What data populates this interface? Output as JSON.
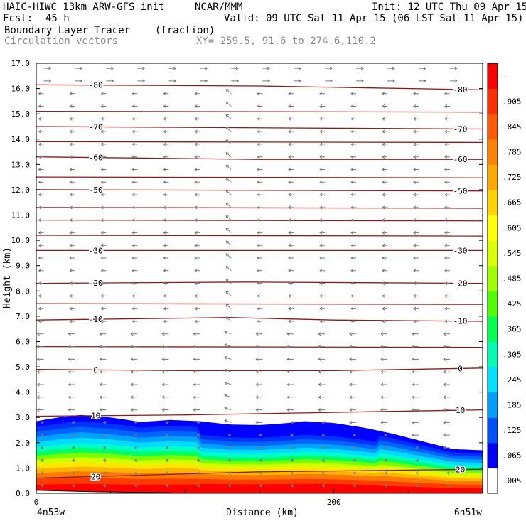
{
  "header": {
    "title_left": "HAIC-HIWC 13km ARW-GFS init",
    "org": "NCAR/MMM",
    "init": "Init: 12 UTC Thu 09 Apr 15",
    "fcst_label": "Fcst:",
    "fcst_value": "45 h",
    "valid": "Valid: 09 UTC Sat 11 Apr 15 (06 LST Sat 11 Apr 15)",
    "field_name": "Boundary Layer Tracer",
    "field_unit": "(fraction)",
    "vector_name": "Circulation vectors",
    "xy_range": "XY= 259.5, 91.6 to 274.6,110.2"
  },
  "chart_data": {
    "type": "heatmap",
    "xlabel": "Distance (km)",
    "ylabel": "Height (km)",
    "xlim": [
      0,
      300
    ],
    "ylim": [
      0.0,
      17.0
    ],
    "x_ticks": [
      {
        "value": 0,
        "label": "0"
      },
      {
        "value": 200,
        "label": "200"
      }
    ],
    "x_endpoint_labels": {
      "left": "4n53w",
      "right": "6n51w"
    },
    "y_ticks": [
      "0.0",
      "1.0",
      "2.0",
      "3.0",
      "4.0",
      "5.0",
      "6.0",
      "7.0",
      "8.0",
      "9.0",
      "10.0",
      "11.0",
      "12.0",
      "13.0",
      "14.0",
      "15.0",
      "16.0",
      "17.0"
    ],
    "colorbar": {
      "labels": [
        ".005",
        ".065",
        ".125",
        ".185",
        ".245",
        ".305",
        ".365",
        ".425",
        ".485",
        ".545",
        ".605",
        ".665",
        ".725",
        ".785",
        ".845",
        ".905",
        "–"
      ],
      "colors": [
        "#ffffff",
        "#0000ff",
        "#0050ff",
        "#00a0ff",
        "#00e0ff",
        "#00ffb4",
        "#00ff50",
        "#50ff00",
        "#a0ff00",
        "#dcff00",
        "#ffff00",
        "#ffd200",
        "#ffaa00",
        "#ff8200",
        "#ff5a00",
        "#ff3000",
        "#ff0000"
      ]
    },
    "tracer_top_km": [
      {
        "x": 0,
        "y": 2.85
      },
      {
        "x": 15,
        "y": 3.0
      },
      {
        "x": 30,
        "y": 3.1
      },
      {
        "x": 50,
        "y": 3.0
      },
      {
        "x": 70,
        "y": 2.82
      },
      {
        "x": 90,
        "y": 2.9
      },
      {
        "x": 110,
        "y": 2.85
      },
      {
        "x": 130,
        "y": 2.72
      },
      {
        "x": 150,
        "y": 2.7
      },
      {
        "x": 170,
        "y": 2.78
      },
      {
        "x": 180,
        "y": 2.85
      },
      {
        "x": 200,
        "y": 2.78
      },
      {
        "x": 220,
        "y": 2.6
      },
      {
        "x": 240,
        "y": 2.35
      },
      {
        "x": 260,
        "y": 2.05
      },
      {
        "x": 280,
        "y": 1.75
      },
      {
        "x": 300,
        "y": 1.7
      }
    ],
    "temperature_contours": [
      {
        "value": 20,
        "label": "20",
        "points": [
          [
            0,
            0.6
          ],
          [
            150,
            0.85
          ],
          [
            300,
            0.95
          ]
        ]
      },
      {
        "value": 10,
        "label": "10",
        "points": [
          [
            0,
            3.05
          ],
          [
            100,
            3.1
          ],
          [
            200,
            3.2
          ],
          [
            300,
            3.3
          ]
        ]
      },
      {
        "value": 0,
        "label": "0",
        "points": [
          [
            0,
            4.9
          ],
          [
            100,
            4.85
          ],
          [
            200,
            4.85
          ],
          [
            300,
            4.95
          ]
        ]
      },
      {
        "value": -10,
        "label": "-10",
        "points": [
          [
            0,
            6.85
          ],
          [
            130,
            6.95
          ],
          [
            200,
            6.85
          ],
          [
            300,
            6.8
          ]
        ]
      },
      {
        "value": -20,
        "label": "-20",
        "points": [
          [
            0,
            8.3
          ],
          [
            140,
            8.35
          ],
          [
            300,
            8.3
          ]
        ]
      },
      {
        "value": -30,
        "label": "-30",
        "points": [
          [
            0,
            9.6
          ],
          [
            300,
            9.6
          ]
        ]
      },
      {
        "value": -50,
        "label": "-50",
        "points": [
          [
            0,
            12.0
          ],
          [
            300,
            11.95
          ]
        ]
      },
      {
        "value": -60,
        "label": "-60",
        "points": [
          [
            0,
            13.3
          ],
          [
            150,
            13.2
          ],
          [
            300,
            13.2
          ]
        ]
      },
      {
        "value": -70,
        "label": "-70",
        "points": [
          [
            0,
            14.5
          ],
          [
            300,
            14.4
          ]
        ]
      },
      {
        "value": -80,
        "label": "-80",
        "points": [
          [
            0,
            16.15
          ],
          [
            150,
            16.1
          ],
          [
            300,
            15.95
          ]
        ]
      }
    ],
    "extra_contour_heights_km": [
      5.8,
      7.5,
      10.2,
      10.8,
      11.3,
      12.5,
      13.9,
      15.1
    ]
  }
}
